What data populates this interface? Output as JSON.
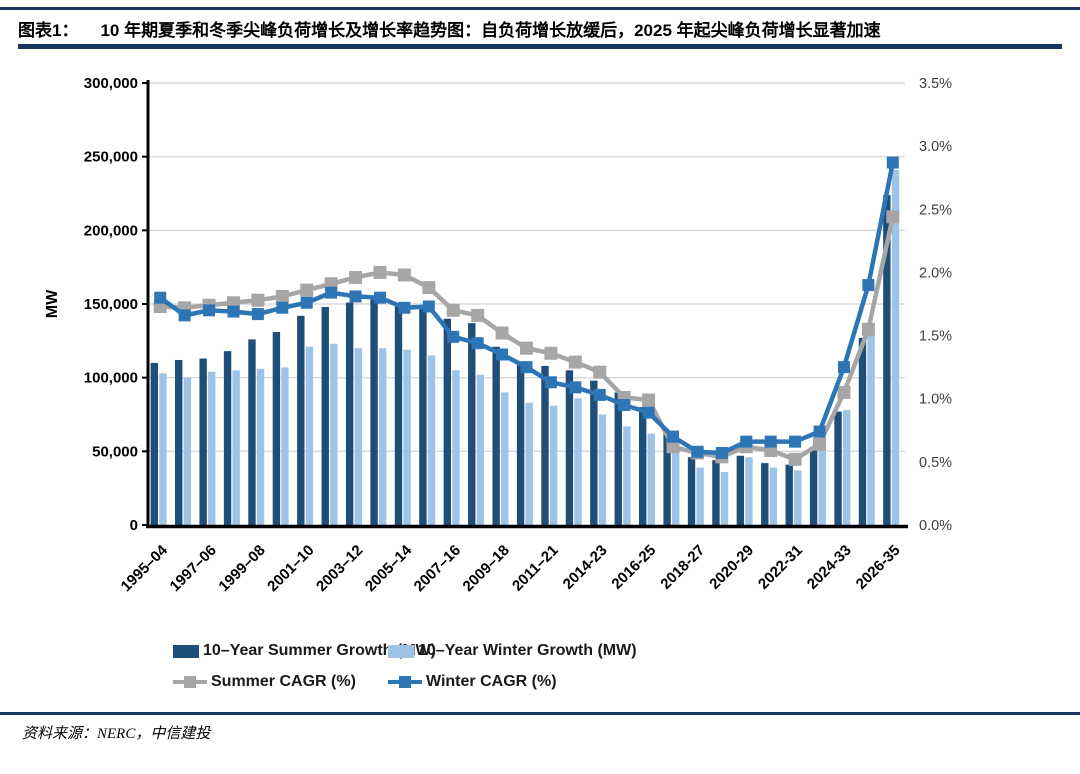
{
  "header": {
    "figure_label": "图表1：",
    "title": "10 年期夏季和冬季尖峰负荷增长及增长率趋势图：自负荷增长放缓后，2025 年起尖峰负荷增长显著加速"
  },
  "footer": {
    "source": "资料来源：NERC，中信建投"
  },
  "colors": {
    "frame_rule": "#17375E",
    "summer_bar": "#1F4E79",
    "winter_bar": "#9DC3E6",
    "summer_line": "#A6A6A6",
    "winter_line": "#2E75B6",
    "gridline": "#D9D9D9",
    "axis": "#000000",
    "right_axis_text": "#404040"
  },
  "chart_data": {
    "type": "bar",
    "subtype": "bar+line combo, dual axis",
    "n_categories": 31,
    "tick_every": 2,
    "x_tick_labels": [
      "1995–04",
      "1997–06",
      "1999–08",
      "2001–10",
      "2003–12",
      "2005–14",
      "2007–16",
      "2009–18",
      "2011–21",
      "2014-23",
      "2016-25",
      "2018-27",
      "2020-29",
      "2022-31",
      "2024-33",
      "2026-35"
    ],
    "left_axis": {
      "label": "MW",
      "min": 0,
      "max": 300000,
      "step": 50000,
      "tick_labels": [
        "0",
        "50,000",
        "100,000",
        "150,000",
        "200,000",
        "250,000",
        "300,000"
      ]
    },
    "right_axis": {
      "min": 0,
      "max": 3.5,
      "step": 0.5,
      "tick_labels": [
        "0.0%",
        "0.5%",
        "1.0%",
        "1.5%",
        "2.0%",
        "2.5%",
        "3.0%",
        "3.5%"
      ]
    },
    "grid": "horizontal",
    "legend_position": "bottom",
    "series": [
      {
        "name": "10–Year Summer Growth (MW)",
        "type": "bar",
        "axis": "left",
        "color": "#1F4E79",
        "values": [
          110000,
          112000,
          113000,
          118000,
          126000,
          131000,
          142000,
          148000,
          151000,
          153000,
          150000,
          147000,
          140000,
          137000,
          121000,
          111000,
          108000,
          105000,
          98000,
          90000,
          80000,
          62000,
          46000,
          44000,
          47000,
          42000,
          41000,
          53000,
          77000,
          127000,
          224000
        ]
      },
      {
        "name": "10–Year Winter Growth (MW)",
        "type": "bar",
        "axis": "left",
        "color": "#9DC3E6",
        "values": [
          103000,
          100000,
          104000,
          105000,
          106000,
          107000,
          121000,
          123000,
          120000,
          120000,
          119000,
          115000,
          105000,
          102000,
          90000,
          83000,
          81000,
          86000,
          75000,
          67000,
          62000,
          49000,
          39000,
          36000,
          46000,
          39000,
          37000,
          51000,
          78000,
          130000,
          241000
        ]
      },
      {
        "name": "Summer CAGR (%)",
        "type": "line",
        "axis": "right",
        "color": "#A6A6A6",
        "marker": "square",
        "values": [
          1.73,
          1.72,
          1.74,
          1.76,
          1.78,
          1.81,
          1.86,
          1.91,
          1.96,
          2.0,
          1.98,
          1.88,
          1.7,
          1.66,
          1.52,
          1.4,
          1.36,
          1.29,
          1.21,
          1.01,
          0.99,
          0.62,
          0.57,
          0.54,
          0.62,
          0.59,
          0.52,
          0.64,
          1.05,
          1.55,
          2.44
        ]
      },
      {
        "name": "Winter CAGR (%)",
        "type": "line",
        "axis": "right",
        "color": "#2E75B6",
        "marker": "square",
        "values": [
          1.8,
          1.66,
          1.7,
          1.69,
          1.67,
          1.72,
          1.76,
          1.84,
          1.81,
          1.8,
          1.72,
          1.73,
          1.49,
          1.44,
          1.35,
          1.25,
          1.13,
          1.09,
          1.03,
          0.95,
          0.89,
          0.7,
          0.58,
          0.57,
          0.66,
          0.66,
          0.66,
          0.74,
          1.25,
          1.9,
          2.87
        ]
      }
    ]
  }
}
